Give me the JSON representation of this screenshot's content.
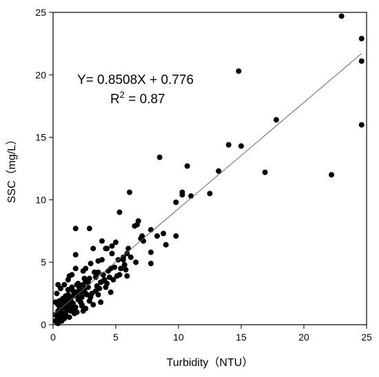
{
  "chart_data": {
    "type": "scatter",
    "xlabel": "Turbidity（NTU）",
    "ylabel": "SSC（mg/L）",
    "xlim": [
      0,
      25
    ],
    "ylim": [
      0,
      25
    ],
    "xticks": [
      "0",
      "5",
      "10",
      "15",
      "20",
      "25"
    ],
    "yticks": [
      "0",
      "5",
      "10",
      "15",
      "20",
      "25"
    ],
    "grid": false,
    "annotations": {
      "equation": "Y= 0.8508X + 0.776",
      "r2_prefix": "R",
      "r2_sup": "2",
      "r2_value": " = 0.87"
    },
    "fit_line": {
      "slope": 0.8508,
      "intercept": 0.776,
      "x_range": [
        0,
        24.6
      ]
    },
    "series": [
      {
        "x": [
          23.0,
          24.6,
          24.6,
          14.8,
          24.6,
          17.8,
          22.2,
          16.9,
          14.0,
          15.0,
          8.5,
          10.7,
          13.2,
          12.5,
          10.3,
          10.3,
          11.0,
          6.1,
          9.8,
          5.3,
          6.8,
          6.7,
          6.5,
          2.9,
          1.8,
          7.1,
          8.3,
          7.8,
          8.8,
          7.0,
          9.8,
          9.0,
          5.9,
          5.6,
          5.0,
          4.7,
          3.9,
          4.2,
          4.3,
          3.2,
          3.9,
          4.7,
          5.6,
          6.2,
          5.7,
          6.6,
          7.8,
          7.8,
          5.2,
          5.9,
          4.6,
          3.6,
          3.0,
          2.6,
          2.4,
          1.8,
          1.5,
          1.2,
          0.9,
          0.6,
          0.4,
          0.3,
          0.2,
          0.5,
          0.8,
          1.0,
          1.3,
          1.7,
          2.2,
          2.5,
          2.8,
          3.5,
          3.8,
          4.1,
          4.5,
          4.0,
          3.5,
          3.3,
          2.9,
          2.6,
          2.4,
          2.1,
          1.9,
          1.6,
          1.4,
          1.1,
          0.7,
          0.5,
          0.3,
          0.2,
          0.5,
          0.8,
          1.1,
          1.3,
          1.6,
          2.0,
          2.3,
          2.7,
          3.1,
          3.4,
          3.7,
          4.2,
          4.8,
          5.1,
          4.4,
          3.0,
          2.2,
          1.8,
          1.4,
          1.0,
          0.6,
          0.4,
          1.2,
          1.5,
          2.0,
          2.4,
          1.7,
          1.0,
          0.6,
          0.3,
          0.4,
          0.7,
          0.9,
          1.3,
          1.9,
          2.6,
          3.2,
          3.8,
          4.6,
          5.3,
          5.8,
          4.9,
          3.4,
          2.8,
          2.1,
          1.6,
          1.2,
          0.8,
          0.5,
          1.1,
          1.6,
          2.3,
          2.9,
          3.6,
          4.3,
          0.6,
          0.9,
          1.4,
          2.0,
          2.6,
          0.4,
          0.7,
          1.0,
          1.5,
          0.2,
          0.4,
          0.6,
          1.8,
          1.3,
          0.5,
          2.3,
          6.0,
          7.2,
          5.4,
          4.0,
          3.6,
          2.5,
          1.9,
          1.3,
          0.9,
          0.5
        ],
        "y": [
          24.7,
          22.9,
          21.1,
          20.3,
          16.0,
          16.4,
          12.0,
          12.2,
          14.4,
          14.3,
          13.4,
          12.7,
          12.3,
          10.5,
          10.6,
          10.4,
          10.3,
          10.6,
          9.8,
          9.0,
          8.3,
          8.0,
          7.9,
          7.7,
          7.7,
          7.1,
          7.1,
          7.6,
          7.3,
          6.9,
          7.1,
          6.4,
          5.7,
          5.4,
          6.6,
          6.3,
          6.7,
          6.1,
          6.1,
          6.1,
          5.2,
          5.7,
          5.2,
          5.4,
          4.8,
          5.0,
          5.8,
          4.9,
          5.2,
          3.9,
          4.5,
          5.1,
          4.9,
          4.5,
          4.3,
          4.5,
          4.0,
          3.6,
          3.2,
          2.9,
          3.2,
          2.5,
          1.8,
          1.5,
          1.8,
          2.1,
          2.2,
          2.5,
          2.6,
          2.8,
          3.0,
          3.1,
          3.4,
          3.6,
          3.8,
          4.0,
          4.1,
          4.2,
          3.7,
          3.5,
          3.2,
          2.9,
          2.6,
          2.3,
          2.0,
          1.7,
          1.3,
          1.0,
          0.7,
          0.3,
          0.5,
          0.9,
          1.2,
          1.5,
          1.7,
          2.0,
          2.2,
          2.4,
          2.5,
          2.7,
          2.9,
          3.0,
          3.6,
          3.9,
          4.3,
          2.2,
          1.8,
          1.4,
          1.1,
          0.9,
          0.6,
          0.4,
          2.8,
          3.0,
          3.3,
          1.1,
          0.9,
          0.7,
          0.5,
          0.2,
          0.1,
          0.3,
          0.5,
          0.6,
          1.0,
          1.3,
          1.6,
          1.8,
          2.6,
          4.0,
          4.4,
          4.6,
          3.8,
          3.4,
          3.0,
          2.7,
          2.4,
          2.1,
          1.9,
          1.5,
          1.3,
          1.6,
          1.9,
          2.4,
          3.3,
          1.2,
          1.5,
          1.9,
          2.2,
          2.5,
          1.6,
          2.0,
          2.3,
          2.8,
          0.8,
          1.1,
          1.4,
          5.6,
          3.9,
          0.4,
          1.5,
          6.1,
          6.7,
          4.5,
          3.5,
          4.2,
          3.7,
          3.2,
          2.0,
          1.6,
          1.2
        ]
      }
    ]
  }
}
